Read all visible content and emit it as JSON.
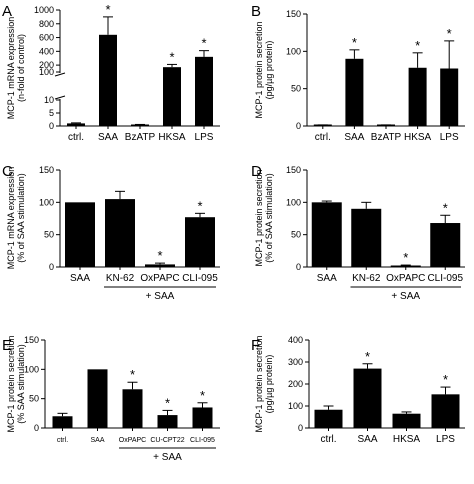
{
  "chart_data": [
    {
      "panel": "A",
      "type": "bar",
      "ylabel": [
        "MCP-1 mRNA expression",
        "(n-fold of control)"
      ],
      "categories": [
        "ctrl.",
        "SAA",
        "BzATP",
        "HKSA",
        "LPS"
      ],
      "values": [
        1,
        640,
        0.5,
        170,
        320
      ],
      "errors": [
        0.2,
        260,
        0.1,
        40,
        90
      ],
      "significant": [
        false,
        true,
        false,
        true,
        true
      ],
      "axis_break": true,
      "lower_segment": {
        "ylim": [
          0,
          10
        ],
        "ticks": [
          "0",
          "5",
          "10"
        ]
      },
      "upper_segment": {
        "ylim": [
          100,
          1000
        ],
        "ticks": [
          "100",
          "200",
          "400",
          "600",
          "800",
          "1000"
        ]
      },
      "log_scale_upper": false
    },
    {
      "panel": "B",
      "type": "bar",
      "ylabel": [
        "MCP-1 protein secretion",
        "(pg/µg protein)"
      ],
      "categories": [
        "ctrl.",
        "SAA",
        "BzATP",
        "HKSA",
        "LPS"
      ],
      "values": [
        1,
        90,
        1,
        78,
        77
      ],
      "errors": [
        0.5,
        12,
        0.5,
        20,
        37
      ],
      "significant": [
        false,
        true,
        false,
        true,
        true
      ],
      "ylim": [
        0,
        150
      ],
      "yticks": [
        "0",
        "50",
        "100",
        "150"
      ]
    },
    {
      "panel": "C",
      "type": "bar",
      "ylabel": [
        "MCP-1 mRNA expression",
        "(% of SAA stimulation)"
      ],
      "categories": [
        "SAA",
        "KN-62",
        "OxPAPC",
        "CLI-095"
      ],
      "values": [
        100,
        105,
        4,
        77
      ],
      "errors": [
        0,
        12,
        2,
        6
      ],
      "significant": [
        false,
        false,
        true,
        true
      ],
      "group_label": "+ SAA",
      "group_categories": [
        1,
        3
      ],
      "ylim": [
        0,
        150
      ],
      "yticks": [
        "0",
        "50",
        "100",
        "150"
      ]
    },
    {
      "panel": "D",
      "type": "bar",
      "ylabel": [
        "MCP-1 protein secretion",
        "(% of SAA stimulation)"
      ],
      "categories": [
        "SAA",
        "KN-62",
        "OxPAPC",
        "CLI-095"
      ],
      "values": [
        100,
        90,
        2,
        68
      ],
      "errors": [
        2,
        10,
        1,
        12
      ],
      "significant": [
        false,
        false,
        true,
        true
      ],
      "group_label": "+ SAA",
      "group_categories": [
        1,
        3
      ],
      "ylim": [
        0,
        150
      ],
      "yticks": [
        "0",
        "50",
        "100",
        "150"
      ]
    },
    {
      "panel": "E",
      "type": "bar",
      "ylabel": [
        "MCP-1 protein secretion",
        "(% SAA stimulation)"
      ],
      "categories": [
        "ctrl.",
        "SAA",
        "OxPAPC",
        "CU-CPT22",
        "CLI-095"
      ],
      "values": [
        20,
        100,
        66,
        22,
        35
      ],
      "errors": [
        5,
        0,
        12,
        8,
        8
      ],
      "significant": [
        false,
        false,
        true,
        true,
        true
      ],
      "group_label": "+ SAA",
      "group_categories": [
        2,
        4
      ],
      "ylim": [
        0,
        150
      ],
      "yticks": [
        "0",
        "50",
        "100",
        "150"
      ]
    },
    {
      "panel": "F",
      "type": "bar",
      "ylabel": [
        "MCP-1 protein secretion",
        "(pg/µg protein)"
      ],
      "categories": [
        "ctrl.",
        "SAA",
        "HKSA",
        "LPS"
      ],
      "values": [
        83,
        270,
        65,
        153
      ],
      "errors": [
        17,
        22,
        8,
        33
      ],
      "significant": [
        false,
        true,
        false,
        true
      ],
      "ylim": [
        0,
        400
      ],
      "yticks": [
        "0",
        "100",
        "200",
        "300",
        "400"
      ]
    }
  ],
  "panel_labels": [
    "A",
    "B",
    "C",
    "D",
    "E",
    "F"
  ],
  "significance_marker": "*"
}
